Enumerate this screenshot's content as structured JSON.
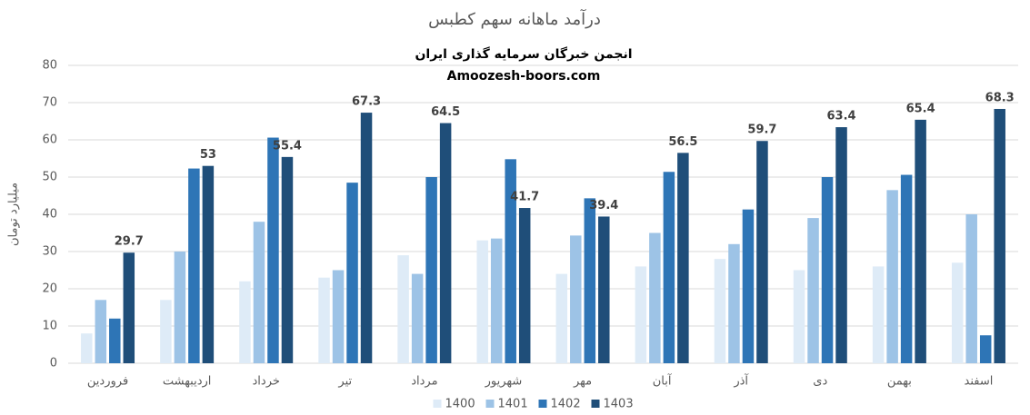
{
  "chart_data": {
    "type": "bar",
    "title": "درآمد ماهانه سهم کطبس",
    "subtitle": "انجمن خبرگان سرمایه گذاری ایران",
    "annotation": "Amoozesh-boors.com",
    "y_label": "میلیارد تومان",
    "categories": [
      "فروردین",
      "اردیبهشت",
      "خرداد",
      "تیر",
      "مرداد",
      "شهریور",
      "مهر",
      "آبان",
      "آذر",
      "دی",
      "بهمن",
      "اسفند"
    ],
    "series": [
      {
        "name": "1400",
        "color": "#deebf7",
        "values": [
          8,
          17,
          22,
          23,
          29,
          33,
          24,
          26,
          28,
          25,
          26,
          27
        ]
      },
      {
        "name": "1401",
        "color": "#9dc3e6",
        "values": [
          17,
          30,
          38,
          25,
          24,
          33.5,
          34.3,
          35,
          32,
          39,
          46.5,
          40
        ]
      },
      {
        "name": "1402",
        "color": "#2e75b6",
        "values": [
          12,
          52.3,
          60.6,
          48.5,
          50,
          54.8,
          44.3,
          51.4,
          41.3,
          50,
          50.6,
          7.5
        ]
      },
      {
        "name": "1403",
        "color": "#1f4e79",
        "data_labels": true,
        "values": [
          29.7,
          53,
          55.4,
          67.3,
          64.5,
          41.7,
          39.4,
          56.5,
          59.7,
          63.4,
          65.4,
          68.3
        ]
      }
    ],
    "ylim": [
      0,
      80
    ],
    "yticks": [
      0,
      10,
      20,
      30,
      40,
      50,
      60,
      70,
      80
    ],
    "grid": true,
    "legend": "bottom"
  }
}
